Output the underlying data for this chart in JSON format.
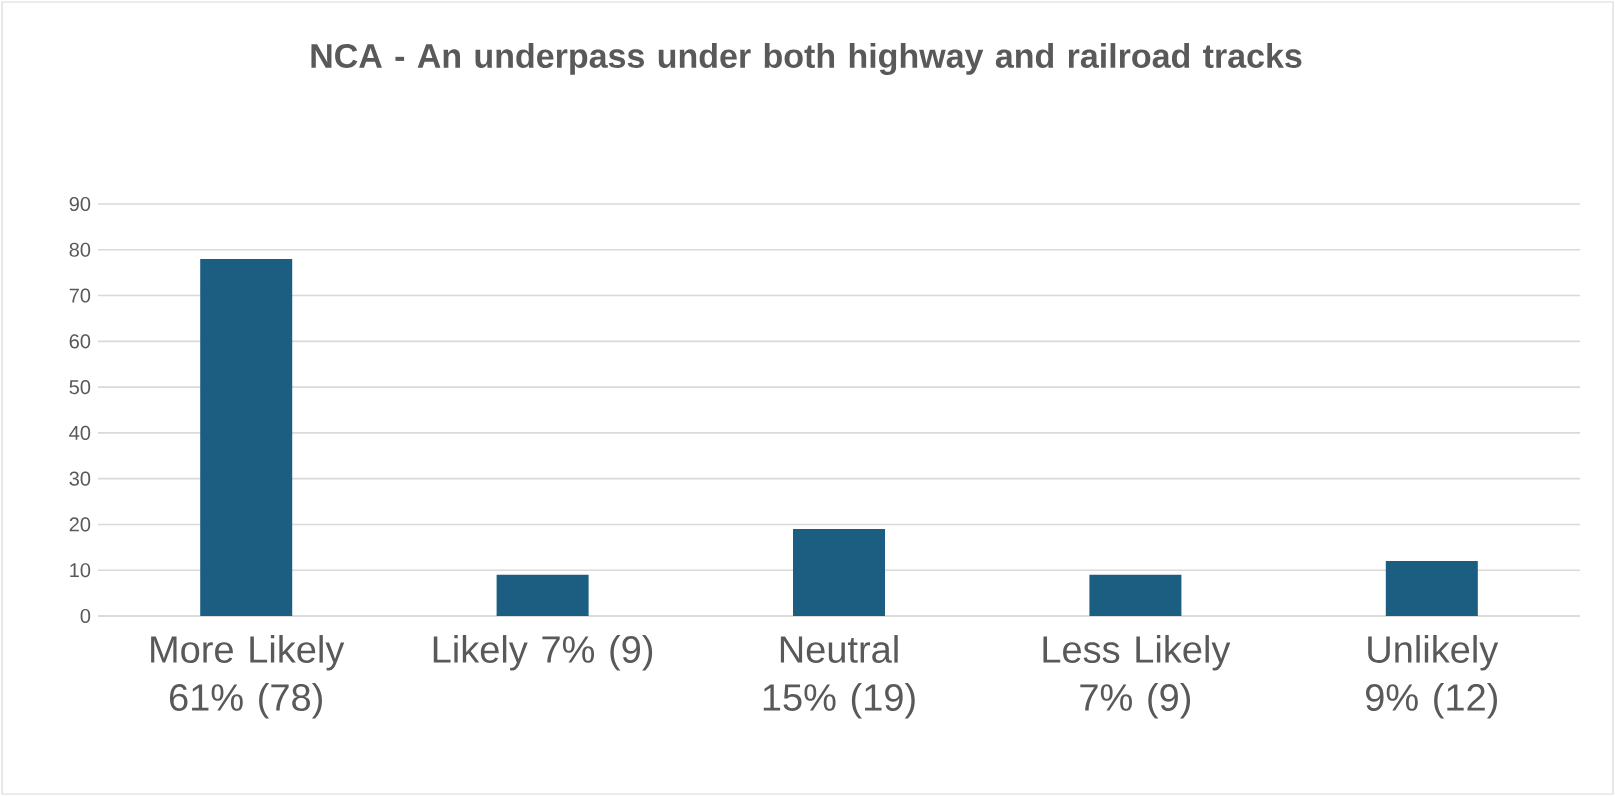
{
  "chart_data": {
    "type": "bar",
    "title": "NCA - An underpass under both highway and railroad tracks",
    "categories": [
      "More Likely 61% (78)",
      "Likely 7% (9)",
      "Neutral 15% (19)",
      "Less Likely 7% (9)",
      "Unlikely 9% (12)"
    ],
    "values": [
      78,
      9,
      19,
      9,
      12
    ],
    "color": "#1b5e82",
    "ylim": [
      0,
      90
    ],
    "yticks": [
      0,
      10,
      20,
      30,
      40,
      50,
      60,
      70,
      80,
      90
    ],
    "grid": "y"
  }
}
